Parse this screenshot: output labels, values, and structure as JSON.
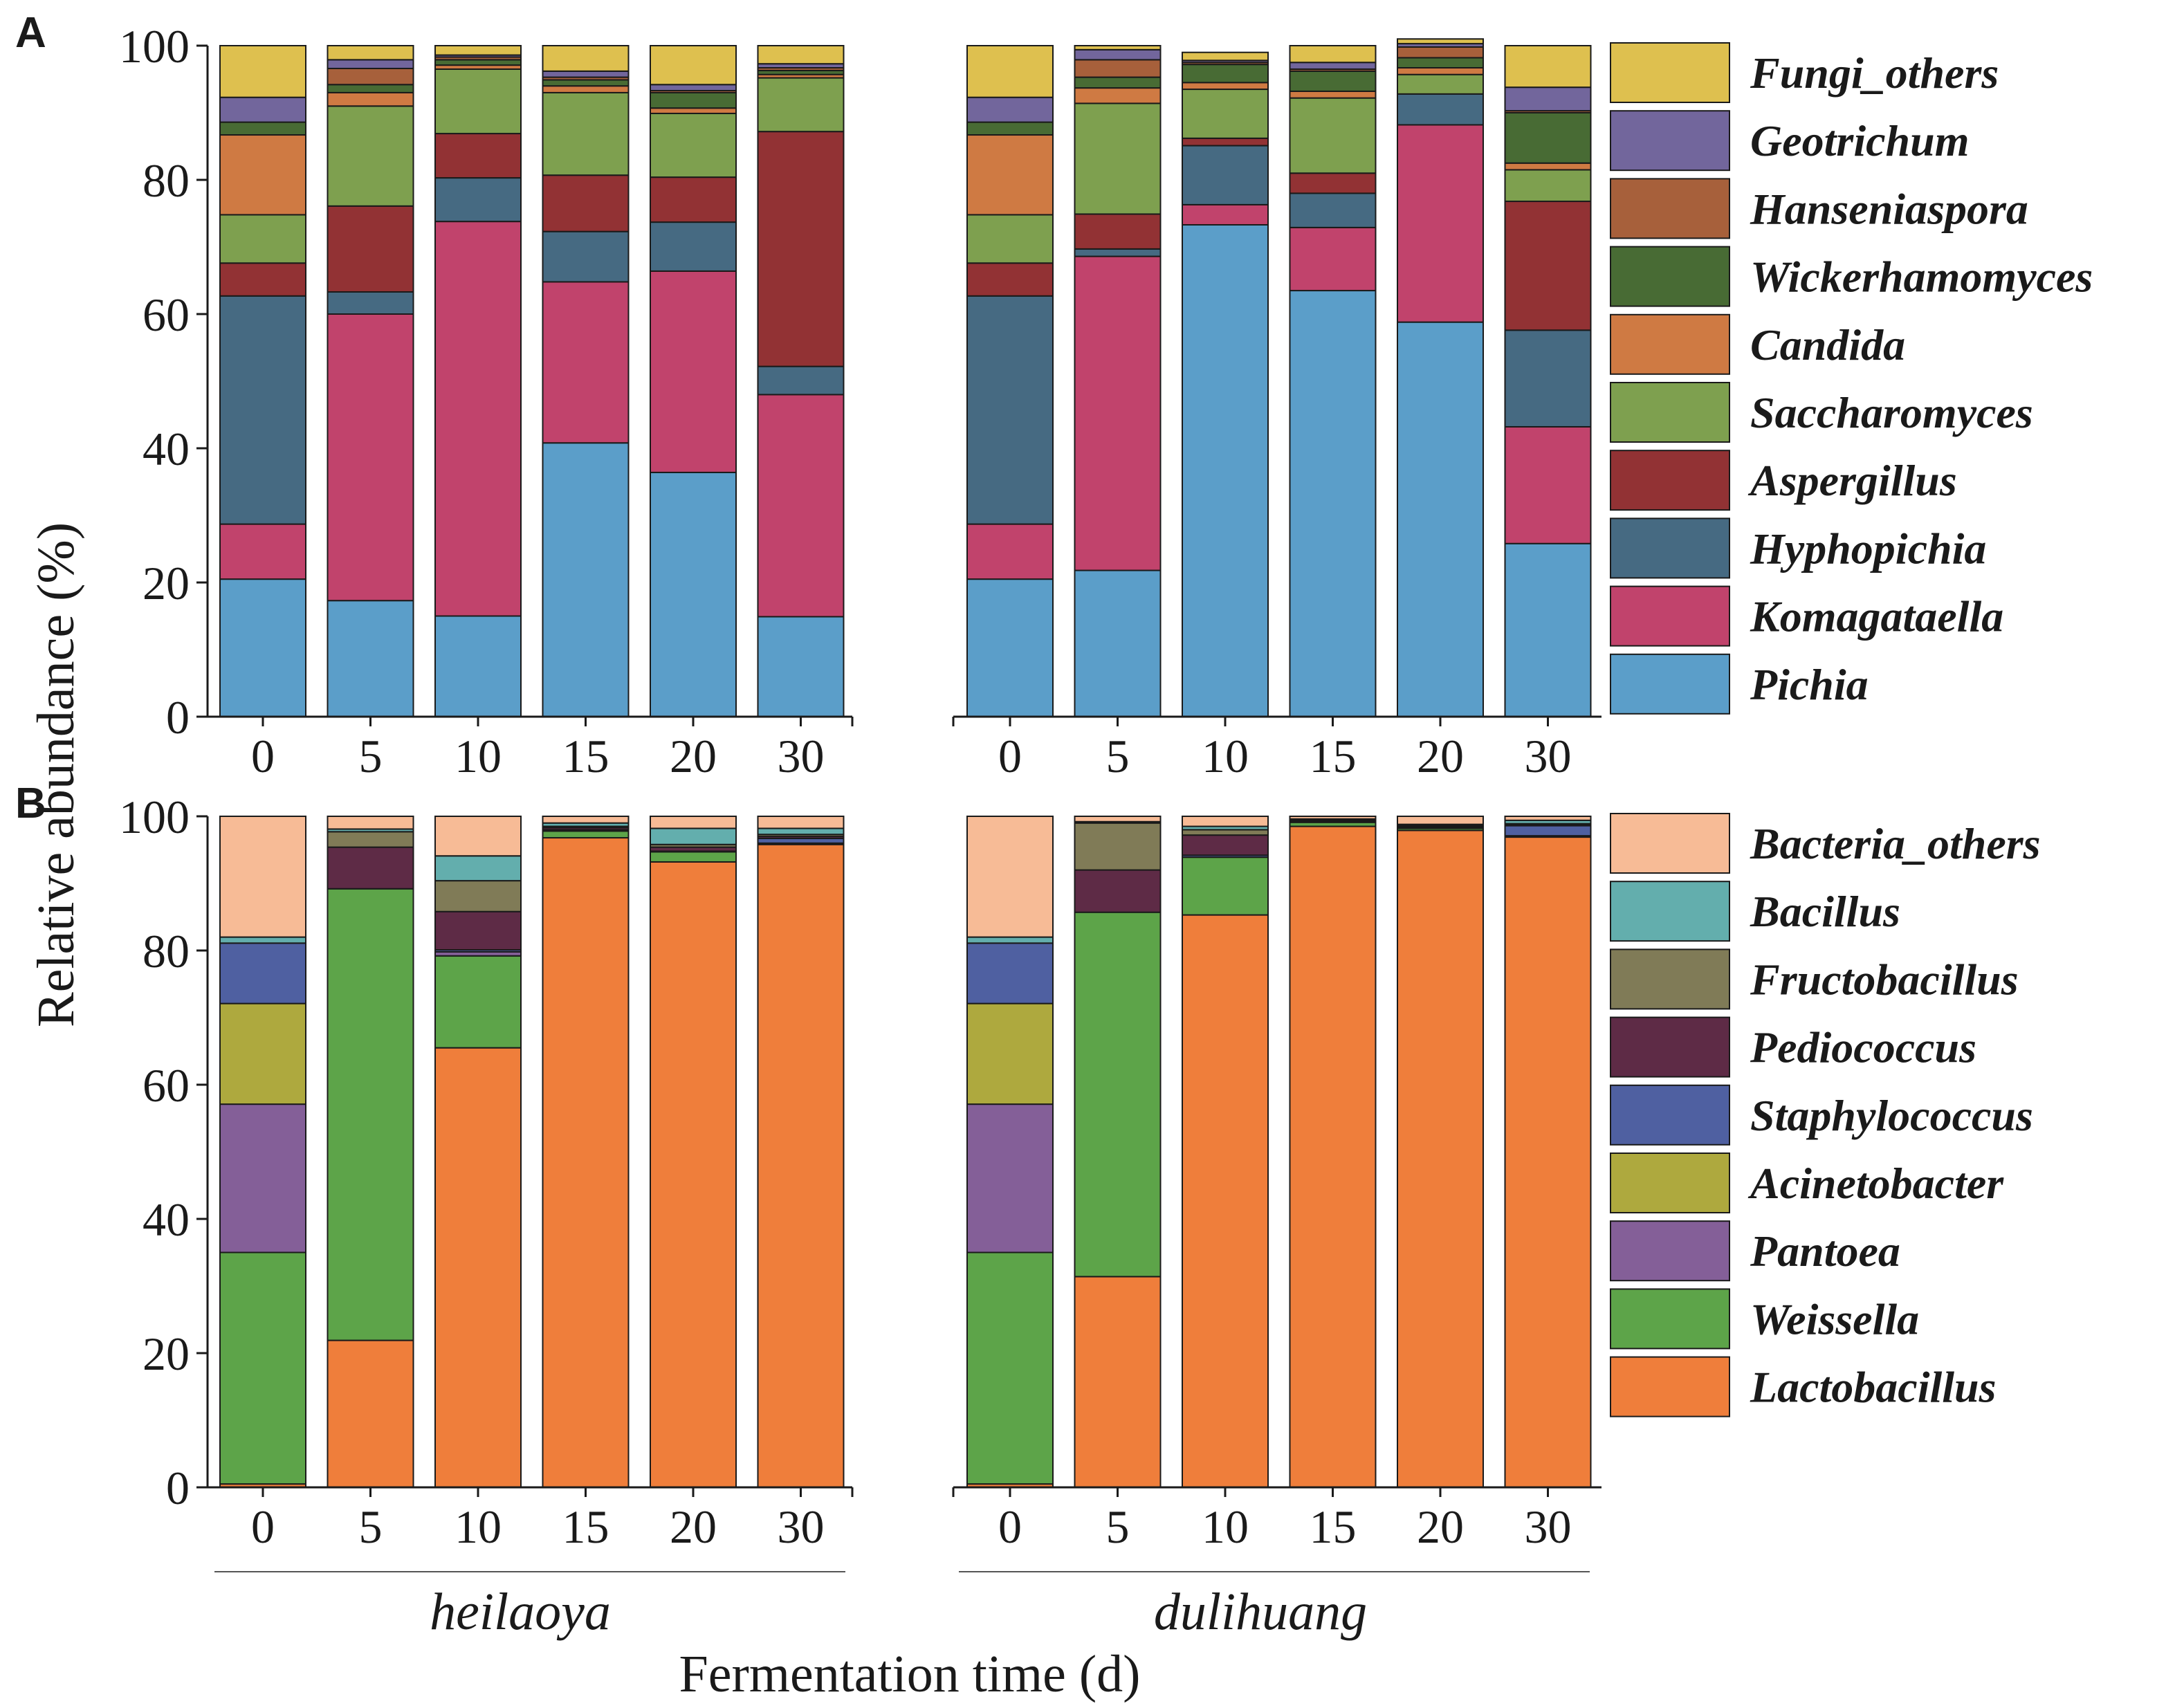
{
  "figure": {
    "y_axis_title": "Relative abundance (%)",
    "x_axis_title": "Fermentation time (d)",
    "groups": [
      "heilaoya",
      "dulihuang"
    ]
  },
  "chart_data": [
    {
      "type": "bar",
      "stacked": true,
      "panel_label": "A",
      "title": "",
      "xlabel": "Fermentation time (d)",
      "ylabel": "Relative abundance (%)",
      "ylim": [
        0,
        100
      ],
      "yticks": [
        0,
        20,
        40,
        60,
        80,
        100
      ],
      "groups": [
        "heilaoya",
        "dulihuang"
      ],
      "categories": [
        "0",
        "5",
        "10",
        "15",
        "20",
        "30"
      ],
      "series": [
        {
          "name": "Pichia",
          "color": "#5B9EC9",
          "values": {
            "heilaoya": [
              20.5,
              17.3,
              15.0,
              40.8,
              36.4,
              14.9
            ],
            "dulihuang": [
              20.5,
              21.8,
              73.3,
              63.5,
              58.8,
              25.8
            ]
          }
        },
        {
          "name": "Komagataella",
          "color": "#C1436C",
          "values": {
            "heilaoya": [
              8.2,
              42.7,
              58.8,
              24.0,
              30.0,
              33.1
            ],
            "dulihuang": [
              8.2,
              46.8,
              3.0,
              9.4,
              29.4,
              17.4
            ]
          }
        },
        {
          "name": "Hyphopichia",
          "color": "#466A82",
          "values": {
            "heilaoya": [
              34.0,
              3.3,
              6.5,
              7.5,
              7.3,
              4.2
            ],
            "dulihuang": [
              34.0,
              1.1,
              8.8,
              5.1,
              4.6,
              14.4
            ]
          }
        },
        {
          "name": "Aspergillus",
          "color": "#923234",
          "values": {
            "heilaoya": [
              4.9,
              12.8,
              6.6,
              8.4,
              6.7,
              35.0
            ],
            "dulihuang": [
              4.9,
              5.2,
              1.1,
              3.0,
              0.0,
              19.2
            ]
          }
        },
        {
          "name": "Saccharomyces",
          "color": "#7EA04F",
          "values": {
            "heilaoya": [
              7.2,
              14.9,
              9.6,
              12.3,
              9.5,
              8.0
            ],
            "dulihuang": [
              7.2,
              16.5,
              7.3,
              11.2,
              2.9,
              4.7
            ]
          }
        },
        {
          "name": "Candida",
          "color": "#CF7A43",
          "values": {
            "heilaoya": [
              11.9,
              2.0,
              0.6,
              1.0,
              0.8,
              0.5
            ],
            "dulihuang": [
              11.9,
              2.3,
              1.0,
              1.0,
              1.0,
              1.0
            ]
          }
        },
        {
          "name": "Wickerhamomyces",
          "color": "#486B34",
          "values": {
            "heilaoya": [
              1.9,
              1.2,
              0.8,
              0.9,
              2.3,
              0.6
            ],
            "dulihuang": [
              1.9,
              1.6,
              2.7,
              3.0,
              1.5,
              7.5
            ]
          }
        },
        {
          "name": "Hanseniaspora",
          "color": "#A7603B",
          "values": {
            "heilaoya": [
              0.0,
              2.4,
              0.4,
              0.4,
              0.3,
              0.4
            ],
            "dulihuang": [
              0.0,
              2.6,
              0.3,
              0.3,
              1.6,
              0.3
            ]
          }
        },
        {
          "name": "Geotrichum",
          "color": "#72669C",
          "values": {
            "heilaoya": [
              3.7,
              1.3,
              0.3,
              0.9,
              0.9,
              0.6
            ],
            "dulihuang": [
              3.7,
              1.5,
              0.3,
              1.0,
              0.5,
              3.5
            ]
          }
        },
        {
          "name": "Fungi_others",
          "color": "#DEC04F",
          "values": {
            "heilaoya": [
              7.7,
              2.1,
              1.4,
              3.8,
              5.8,
              2.7
            ],
            "dulihuang": [
              7.7,
              0.6,
              1.2,
              2.5,
              0.7,
              6.2
            ]
          }
        }
      ]
    },
    {
      "type": "bar",
      "stacked": true,
      "panel_label": "B",
      "title": "",
      "xlabel": "Fermentation time (d)",
      "ylabel": "Relative abundance (%)",
      "ylim": [
        0,
        100
      ],
      "yticks": [
        0,
        20,
        40,
        60,
        80,
        100
      ],
      "groups": [
        "heilaoya",
        "dulihuang"
      ],
      "categories": [
        "0",
        "5",
        "10",
        "15",
        "20",
        "30"
      ],
      "series": [
        {
          "name": "Lactobacillus",
          "color": "#EF7E3B",
          "values": {
            "heilaoya": [
              0.5,
              21.9,
              65.5,
              96.8,
              93.2,
              95.8
            ],
            "dulihuang": [
              0.5,
              31.4,
              85.3,
              98.5,
              97.9,
              96.9
            ]
          }
        },
        {
          "name": "Weissella",
          "color": "#5DA449",
          "values": {
            "heilaoya": [
              34.5,
              67.3,
              13.7,
              1.0,
              1.5,
              0.2
            ],
            "dulihuang": [
              34.5,
              54.3,
              8.6,
              0.6,
              0.3,
              0.2
            ]
          }
        },
        {
          "name": "Pantoea",
          "color": "#845F98",
          "values": {
            "heilaoya": [
              22.1,
              0.0,
              0.6,
              0.0,
              0.0,
              0.0
            ],
            "dulihuang": [
              22.1,
              0.0,
              0.0,
              0.0,
              0.0,
              0.0
            ]
          }
        },
        {
          "name": "Acinetobacter",
          "color": "#AEA93E",
          "values": {
            "heilaoya": [
              15.0,
              0.0,
              0.0,
              0.0,
              0.0,
              0.0
            ],
            "dulihuang": [
              15.0,
              0.0,
              0.0,
              0.0,
              0.0,
              0.0
            ]
          }
        },
        {
          "name": "Staphylococcus",
          "color": "#4F60A1",
          "values": {
            "heilaoya": [
              9.0,
              0.0,
              0.3,
              0.2,
              0.1,
              0.7
            ],
            "dulihuang": [
              9.0,
              0.0,
              0.3,
              0.1,
              0.1,
              1.5
            ]
          }
        },
        {
          "name": "Pediococcus",
          "color": "#5E2B46",
          "values": {
            "heilaoya": [
              0.0,
              6.2,
              5.7,
              0.3,
              0.6,
              0.3
            ],
            "dulihuang": [
              0.0,
              6.3,
              3.0,
              0.1,
              0.2,
              0.2
            ]
          }
        },
        {
          "name": "Fructobacillus",
          "color": "#807B57",
          "values": {
            "heilaoya": [
              0.0,
              2.3,
              4.6,
              0.2,
              0.4,
              0.3
            ],
            "dulihuang": [
              0.0,
              7.0,
              0.8,
              0.1,
              0.1,
              0.1
            ]
          }
        },
        {
          "name": "Bacillus",
          "color": "#63AEAD",
          "values": {
            "heilaoya": [
              0.9,
              0.4,
              3.7,
              0.5,
              2.4,
              0.9
            ],
            "dulihuang": [
              0.9,
              0.2,
              0.5,
              0.2,
              0.2,
              0.5
            ]
          }
        },
        {
          "name": "Bacteria_others",
          "color": "#F7BB96",
          "values": {
            "heilaoya": [
              18.0,
              1.9,
              5.9,
              1.0,
              1.8,
              1.8
            ],
            "dulihuang": [
              18.0,
              0.8,
              1.5,
              0.4,
              1.2,
              0.6
            ]
          }
        }
      ]
    }
  ]
}
